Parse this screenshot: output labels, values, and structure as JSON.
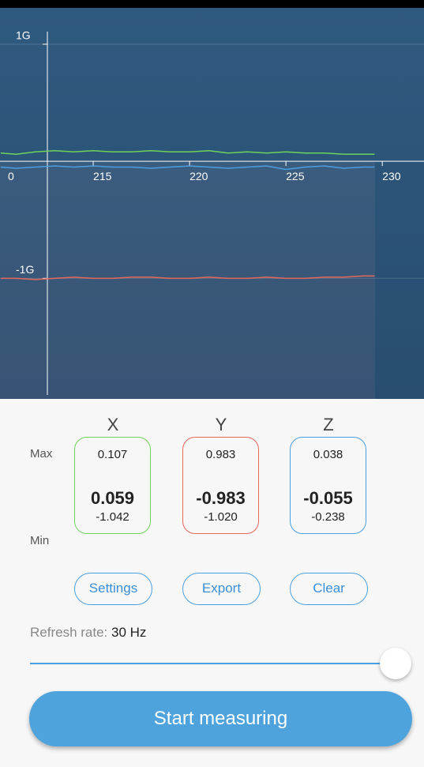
{
  "chart_data": {
    "type": "line",
    "x": [
      210.2,
      211,
      212,
      213,
      214,
      215,
      216,
      217,
      218,
      219,
      220,
      221,
      222,
      223,
      224,
      225,
      226,
      227,
      228,
      229,
      229.6
    ],
    "series": [
      {
        "color": "#6fd35a",
        "values": [
          0.07,
          0.06,
          0.08,
          0.09,
          0.08,
          0.09,
          0.08,
          0.08,
          0.09,
          0.08,
          0.08,
          0.09,
          0.07,
          0.08,
          0.07,
          0.08,
          0.07,
          0.07,
          0.06,
          0.06,
          0.06
        ]
      },
      {
        "color": "#e5675a",
        "values": [
          -1.0,
          -1.0,
          -1.01,
          -1.0,
          -0.99,
          -1.0,
          -1.0,
          -0.99,
          -0.99,
          -1.0,
          -1.0,
          -0.99,
          -1.0,
          -1.0,
          -0.99,
          -1.0,
          -1.0,
          -0.99,
          -0.99,
          -0.98,
          -0.98
        ]
      },
      {
        "color": "#4a9fe0",
        "values": [
          -0.05,
          -0.06,
          -0.05,
          -0.04,
          -0.05,
          -0.04,
          -0.05,
          -0.05,
          -0.06,
          -0.05,
          -0.04,
          -0.05,
          -0.06,
          -0.05,
          -0.04,
          -0.07,
          -0.05,
          -0.04,
          -0.06,
          -0.05,
          -0.05
        ]
      }
    ],
    "xlim": [
      210,
      232
    ],
    "ylim": [
      -2.03,
      1.31
    ],
    "xticks": [
      {
        "value": 210,
        "label": "0"
      },
      215,
      220,
      225,
      230
    ],
    "yticks": [
      {
        "value": 1,
        "label": "1G"
      },
      {
        "value": -1,
        "label": "-1G"
      }
    ],
    "grid": true
  },
  "panel": {
    "row_labels": {
      "max": "Max",
      "min": "Min"
    },
    "columns": [
      {
        "name": "X",
        "color": "#6fd35a",
        "max": "0.107",
        "current": "0.059",
        "min": "-1.042"
      },
      {
        "name": "Y",
        "color": "#e5675a",
        "max": "0.983",
        "current": "-0.983",
        "min": "-1.020"
      },
      {
        "name": "Z",
        "color": "#4a9fe0",
        "max": "0.038",
        "current": "-0.055",
        "min": "-0.238"
      }
    ],
    "buttons": [
      "Settings",
      "Export",
      "Clear"
    ],
    "refresh": {
      "label": "Refresh rate:",
      "value": "30 Hz"
    },
    "start_button": "Start measuring"
  }
}
